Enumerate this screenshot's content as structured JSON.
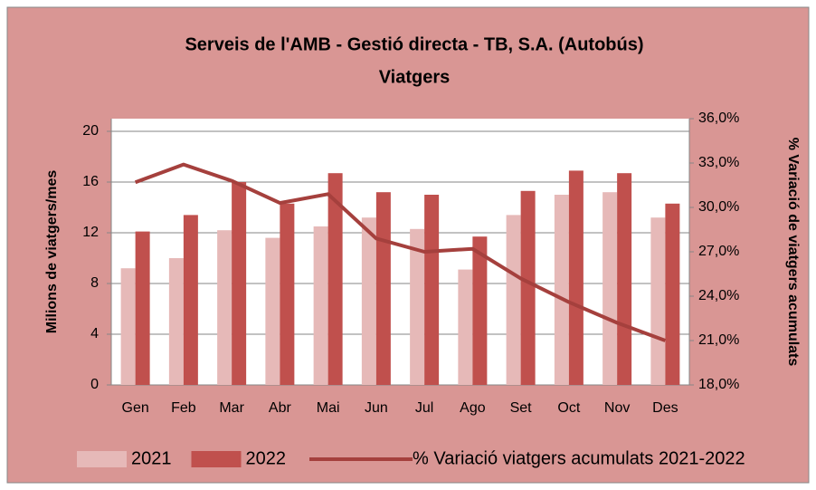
{
  "chart_data": {
    "type": "bar_line",
    "title": "Serveis de l'AMB - Gestió directa - TB, S.A. (Autobús)",
    "subtitle": "Viatgers",
    "ylabel": "Milions de viatgers/mes",
    "y2label": "% Variació de viatgers acumulats",
    "categories": [
      "Gen",
      "Feb",
      "Mar",
      "Abr",
      "Mai",
      "Jun",
      "Jul",
      "Ago",
      "Set",
      "Oct",
      "Nov",
      "Des"
    ],
    "series": [
      {
        "name": "2021",
        "type": "bar",
        "color": "#e6b9b8",
        "values": [
          9.2,
          10.0,
          12.2,
          11.6,
          12.5,
          13.2,
          12.3,
          9.1,
          13.4,
          15.0,
          15.2,
          13.2
        ]
      },
      {
        "name": "2022",
        "type": "bar",
        "color": "#c0504d",
        "values": [
          12.1,
          13.4,
          16.0,
          14.3,
          16.7,
          15.2,
          15.0,
          11.7,
          15.3,
          16.9,
          16.7,
          14.3
        ]
      },
      {
        "name": "% Variació viatgers acumulats 2021-2022",
        "type": "line",
        "axis": "y2",
        "color": "#a5403d",
        "values": [
          31.7,
          32.9,
          31.8,
          30.3,
          30.9,
          27.9,
          27.0,
          27.2,
          25.2,
          23.6,
          22.2,
          21.0
        ]
      }
    ],
    "ylim": [
      0,
      21
    ],
    "yticks": [
      0,
      4,
      8,
      12,
      16,
      20
    ],
    "y2lim": [
      18,
      36
    ],
    "y2ticks": [
      {
        "value": 18,
        "label": "18,0%"
      },
      {
        "value": 21,
        "label": "21,0%"
      },
      {
        "value": 24,
        "label": "24,0%"
      },
      {
        "value": 27,
        "label": "27,0%"
      },
      {
        "value": 30,
        "label": "30,0%"
      },
      {
        "value": 33,
        "label": "33,0%"
      },
      {
        "value": 36,
        "label": "36,0%"
      }
    ],
    "grid": true,
    "legend": "bottom"
  }
}
